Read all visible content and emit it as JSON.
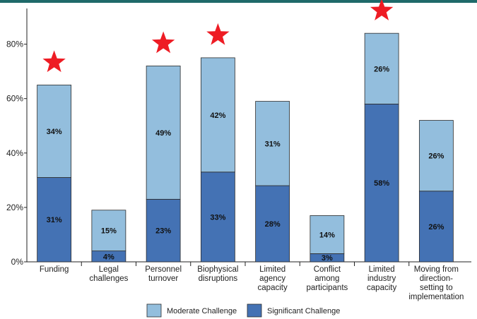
{
  "chart_data": {
    "type": "bar",
    "stacked": true,
    "categories": [
      "Funding",
      "Legal challenges",
      "Personnel turnover",
      "Biophysical disruptions",
      "Limited agency capacity",
      "Conflict among participants",
      "Limited industry capacity",
      "Moving from direction-setting to implementation"
    ],
    "category_lines": [
      [
        "Funding"
      ],
      [
        "Legal",
        "challenges"
      ],
      [
        "Personnel",
        "turnover"
      ],
      [
        "Biophysical",
        "disruptions"
      ],
      [
        "Limited",
        "agency",
        "capacity"
      ],
      [
        "Conflict",
        "among",
        "participants"
      ],
      [
        "Limited",
        "industry",
        "capacity"
      ],
      [
        "Moving from",
        "direction-",
        "setting to",
        "implementation"
      ]
    ],
    "series": [
      {
        "name": "Significant Challenge",
        "values": [
          31,
          4,
          23,
          33,
          28,
          3,
          58,
          26
        ],
        "color": "#4472b4"
      },
      {
        "name": "Moderate Challenge",
        "values": [
          34,
          15,
          49,
          42,
          31,
          14,
          26,
          26
        ],
        "color": "#93bedd"
      }
    ],
    "data_labels": {
      "Significant Challenge": [
        "31%",
        "4%",
        "23%",
        "33%",
        "28%",
        "3%",
        "58%",
        "26%"
      ],
      "Moderate Challenge": [
        "34%",
        "15%",
        "49%",
        "42%",
        "31%",
        "14%",
        "26%",
        "26%"
      ]
    },
    "highlighted": [
      true,
      false,
      true,
      true,
      false,
      false,
      true,
      false
    ],
    "star_color": "#ee1c24",
    "y_ticks": [
      0,
      20,
      40,
      60,
      80
    ],
    "y_tick_labels": [
      "0%",
      "20%",
      "40%",
      "60%",
      "80%"
    ],
    "ylim": [
      0,
      94
    ],
    "grid": false,
    "legend_position": "bottom",
    "legend_order": [
      "Moderate Challenge",
      "Significant Challenge"
    ]
  }
}
